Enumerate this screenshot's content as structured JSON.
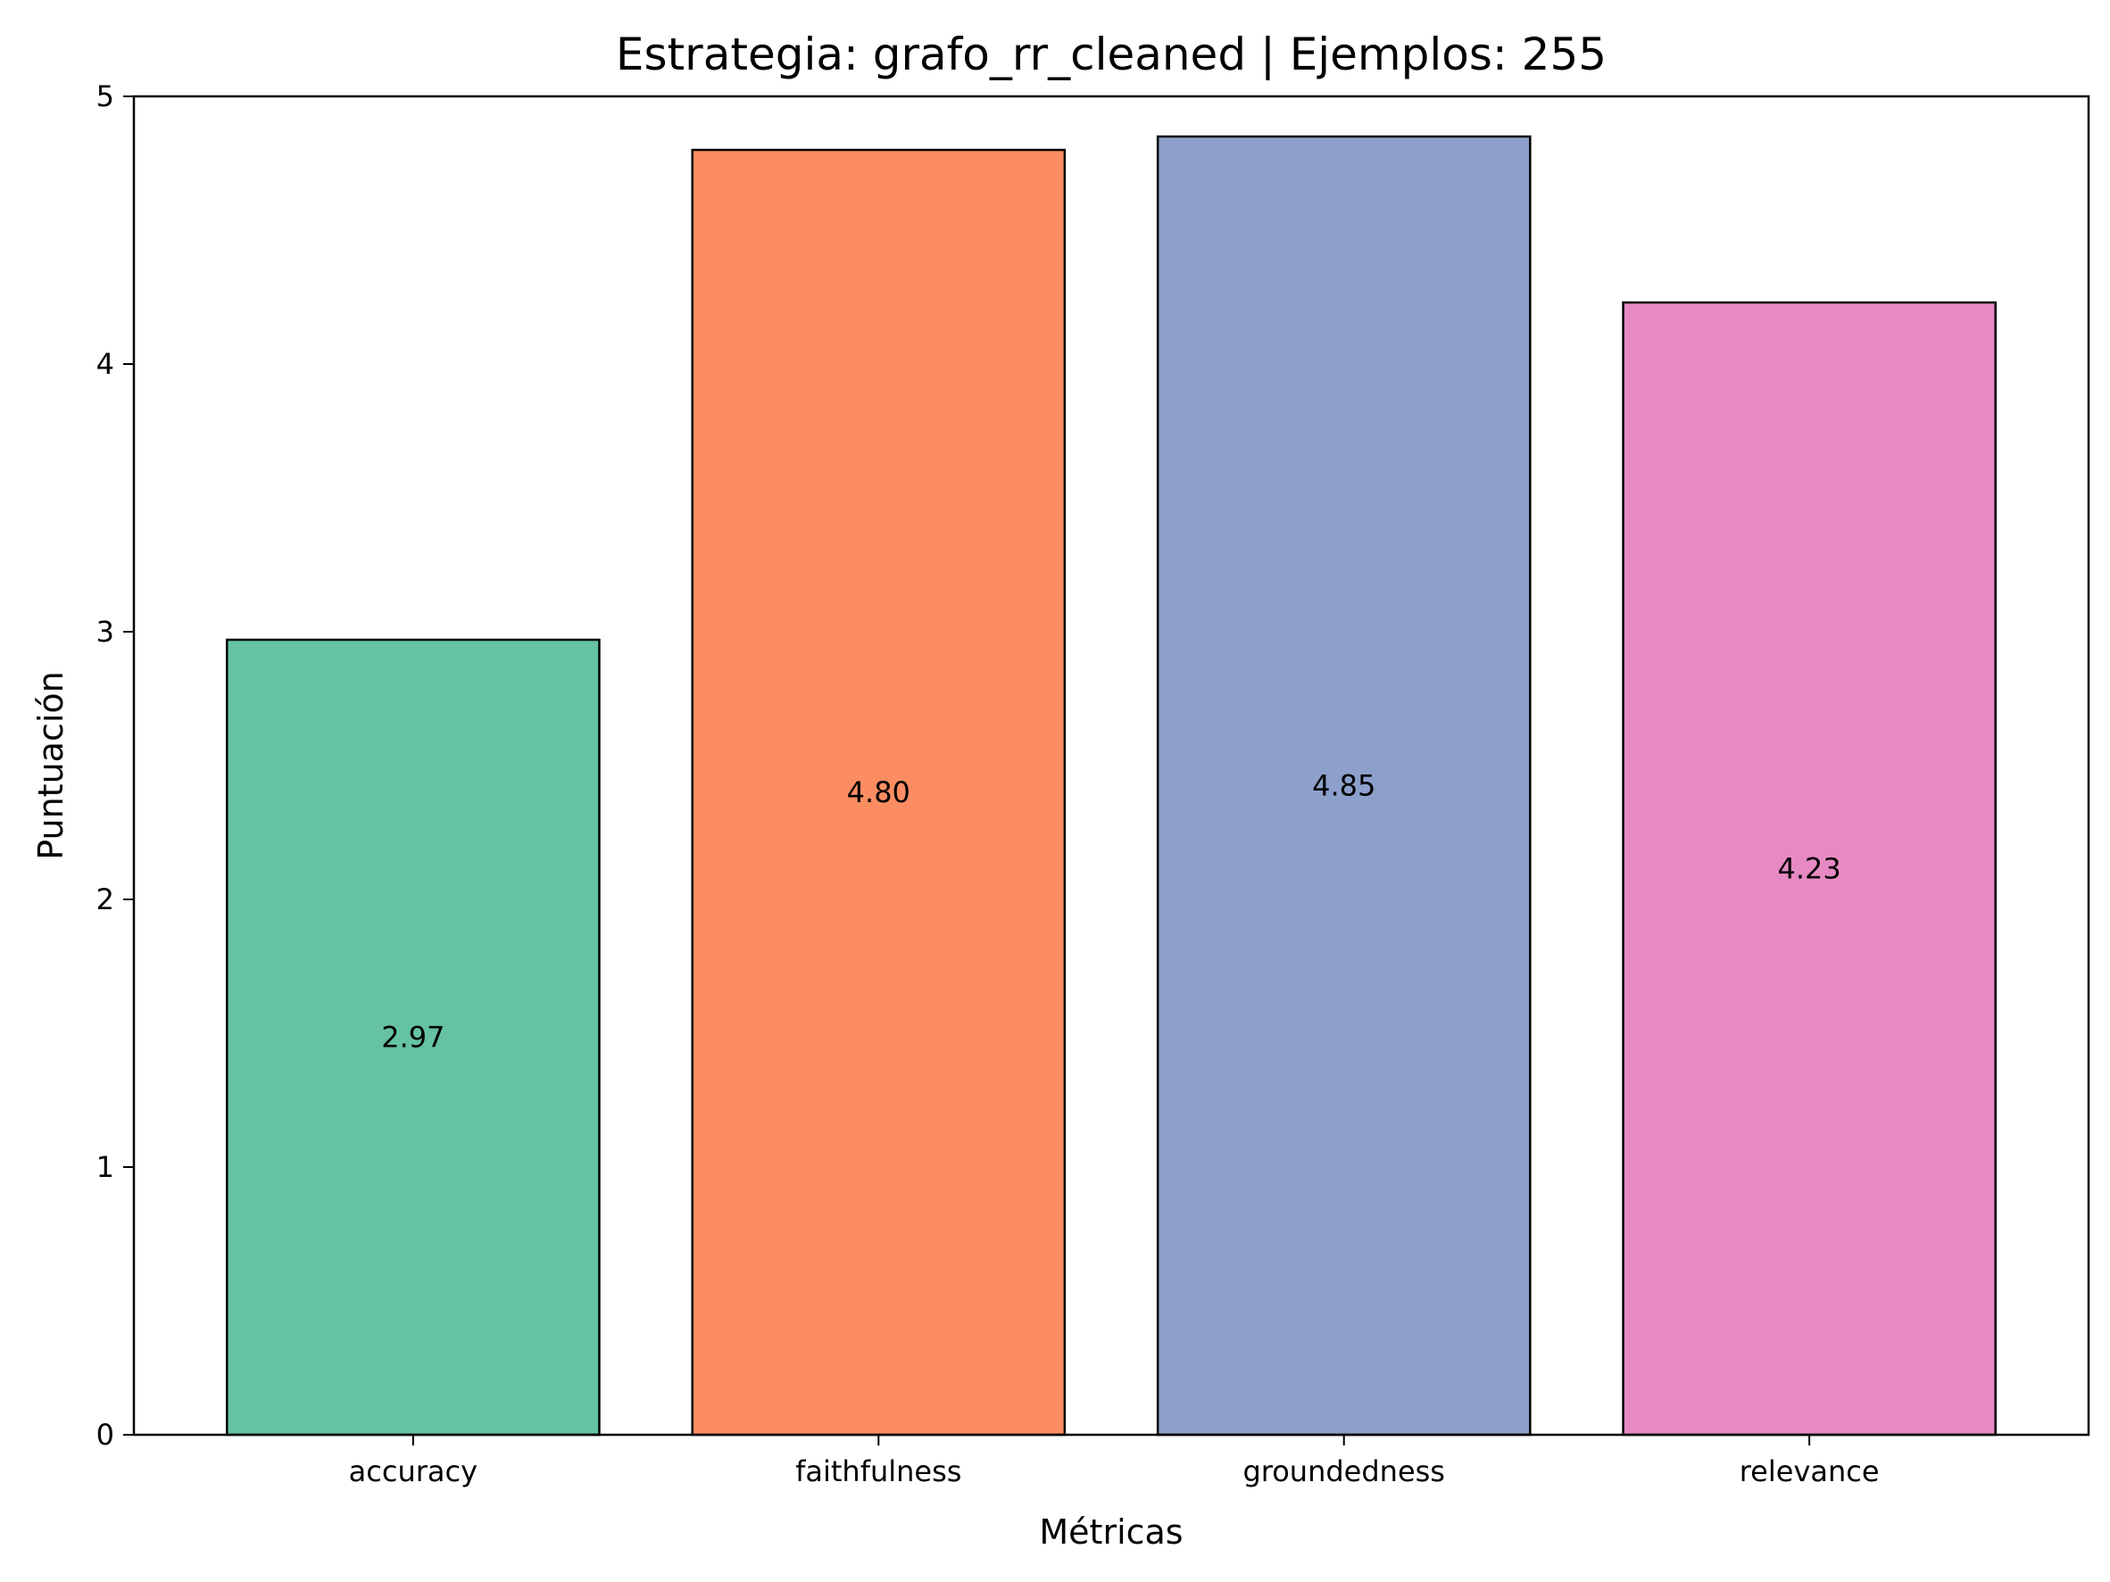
{
  "chart_data": {
    "type": "bar",
    "title": "Estrategia: grafo_rr_cleaned | Ejemplos: 255",
    "xlabel": "Métricas",
    "ylabel": "Puntuación",
    "categories": [
      "accuracy",
      "faithfulness",
      "groundedness",
      "relevance"
    ],
    "values": [
      2.97,
      4.8,
      4.85,
      4.23
    ],
    "value_labels": [
      "2.97",
      "4.80",
      "4.85",
      "4.23"
    ],
    "colors": [
      "#66c2a5",
      "#fc8d62",
      "#8da0cb",
      "#e78ac3"
    ],
    "ylim": [
      0,
      5
    ],
    "yticks": [
      0,
      1,
      2,
      3,
      4,
      5
    ],
    "grid": false,
    "legend": "none"
  }
}
